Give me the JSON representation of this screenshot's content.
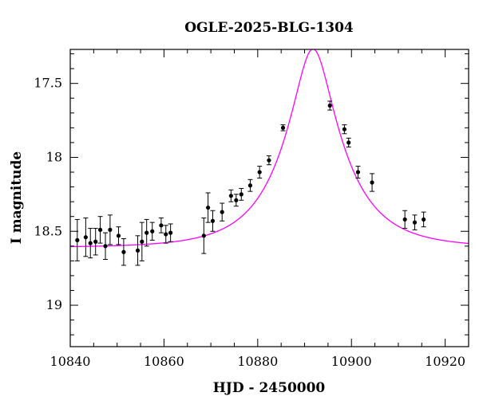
{
  "chart_data": {
    "type": "scatter",
    "title": "OGLE-2025-BLG-1304",
    "xlabel": "HJD - 2450000",
    "ylabel": "I magnitude",
    "xlim": [
      10840,
      10925
    ],
    "ylim": [
      19.28,
      17.27
    ],
    "y_inverted": true,
    "x_ticks": [
      10840,
      10860,
      10880,
      10900,
      10920
    ],
    "x_tick_labels": [
      "10840",
      "10860",
      "10880",
      "10900",
      "10920"
    ],
    "y_ticks": [
      17.5,
      18,
      18.5,
      19
    ],
    "y_tick_labels": [
      "17.5",
      "18",
      "18.5",
      "19"
    ],
    "grid": false,
    "colors": {
      "points": "#000000",
      "model": "#ff00ff"
    },
    "series": [
      {
        "kind": "data-with-errorbars",
        "points": [
          {
            "x": 10841.5,
            "y": 18.56,
            "err": 0.14
          },
          {
            "x": 10843.3,
            "y": 18.54,
            "err": 0.13
          },
          {
            "x": 10844.3,
            "y": 18.58,
            "err": 0.1
          },
          {
            "x": 10845.4,
            "y": 18.57,
            "err": 0.09
          },
          {
            "x": 10846.4,
            "y": 18.49,
            "err": 0.09
          },
          {
            "x": 10847.5,
            "y": 18.6,
            "err": 0.09
          },
          {
            "x": 10848.5,
            "y": 18.49,
            "err": 0.1
          },
          {
            "x": 10850.3,
            "y": 18.53,
            "err": 0.06
          },
          {
            "x": 10851.4,
            "y": 18.64,
            "err": 0.09
          },
          {
            "x": 10854.4,
            "y": 18.63,
            "err": 0.1
          },
          {
            "x": 10855.3,
            "y": 18.57,
            "err": 0.13
          },
          {
            "x": 10856.3,
            "y": 18.51,
            "err": 0.09
          },
          {
            "x": 10857.5,
            "y": 18.5,
            "err": 0.06
          },
          {
            "x": 10859.4,
            "y": 18.46,
            "err": 0.05
          },
          {
            "x": 10860.4,
            "y": 18.52,
            "err": 0.06
          },
          {
            "x": 10861.4,
            "y": 18.51,
            "err": 0.06
          },
          {
            "x": 10868.5,
            "y": 18.53,
            "err": 0.12
          },
          {
            "x": 10869.4,
            "y": 18.34,
            "err": 0.1
          },
          {
            "x": 10870.4,
            "y": 18.43,
            "err": 0.07
          },
          {
            "x": 10872.4,
            "y": 18.37,
            "err": 0.06
          },
          {
            "x": 10874.3,
            "y": 18.26,
            "err": 0.04
          },
          {
            "x": 10875.4,
            "y": 18.29,
            "err": 0.04
          },
          {
            "x": 10876.5,
            "y": 18.25,
            "err": 0.04
          },
          {
            "x": 10878.4,
            "y": 18.19,
            "err": 0.04
          },
          {
            "x": 10880.4,
            "y": 18.1,
            "err": 0.04
          },
          {
            "x": 10882.4,
            "y": 18.02,
            "err": 0.03
          },
          {
            "x": 10885.4,
            "y": 17.8,
            "err": 0.02
          },
          {
            "x": 10895.4,
            "y": 17.65,
            "err": 0.03
          },
          {
            "x": 10898.5,
            "y": 17.81,
            "err": 0.03
          },
          {
            "x": 10899.4,
            "y": 17.9,
            "err": 0.03
          },
          {
            "x": 10901.4,
            "y": 18.1,
            "err": 0.04
          },
          {
            "x": 10904.4,
            "y": 18.17,
            "err": 0.06
          },
          {
            "x": 10911.4,
            "y": 18.42,
            "err": 0.06
          },
          {
            "x": 10913.5,
            "y": 18.44,
            "err": 0.05
          },
          {
            "x": 10915.4,
            "y": 18.42,
            "err": 0.05
          }
        ]
      },
      {
        "kind": "model-curve",
        "model": "paczynski",
        "t0": 10891.8,
        "u0": 0.3,
        "tE": 12.7,
        "baseline_mag": 18.61,
        "blend_fraction": 1.0
      }
    ]
  }
}
